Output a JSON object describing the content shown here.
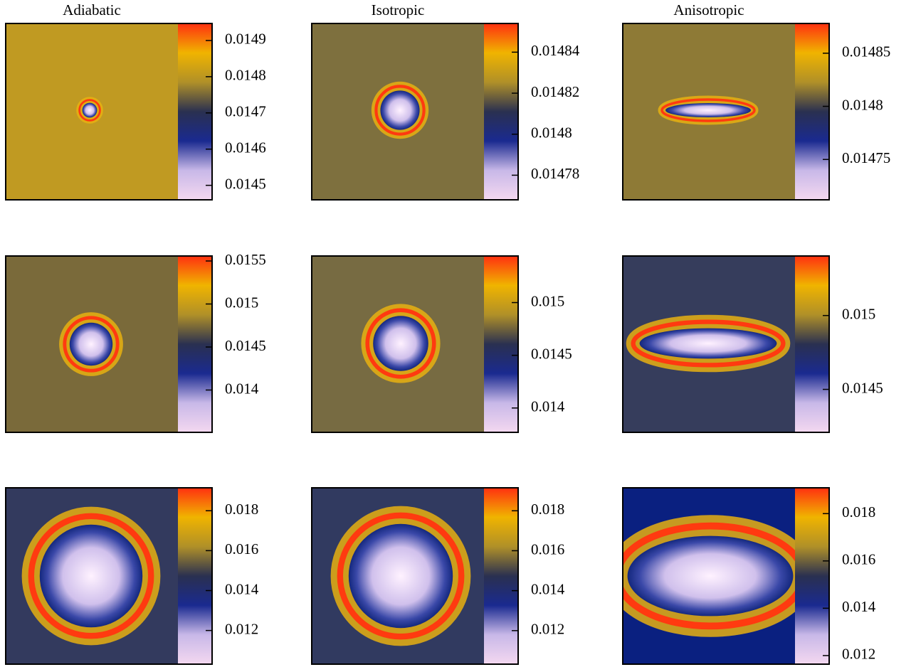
{
  "chart_data": [
    {
      "type": "heatmap",
      "title": "Adiabatic",
      "ylim": [
        0.01446,
        0.014947
      ],
      "yticks": [
        0.0145,
        0.0146,
        0.0147,
        0.0148,
        0.0149
      ],
      "background": "#c09a22",
      "colormap": [
        "#f4d8f0",
        "#c8b8e8",
        "#1a2a90",
        "#2a3050",
        "#b09028",
        "#f0b400",
        "#ff3010"
      ]
    },
    {
      "type": "heatmap",
      "title": "Isotropic",
      "ylim": [
        0.014768,
        0.014854
      ],
      "yticks": [
        0.01478,
        0.0148,
        0.01482,
        0.01484
      ],
      "background": "#7e703e",
      "colormap": [
        "#f4d8f0",
        "#c8b8e8",
        "#1a2a90",
        "#2a3050",
        "#b09028",
        "#f0b400",
        "#ff3010"
      ]
    },
    {
      "type": "heatmap",
      "title": "Anisotropic",
      "ylim": [
        0.014712,
        0.014878
      ],
      "yticks": [
        0.01475,
        0.0148,
        0.01485
      ],
      "background": "#8e7a36",
      "colormap": [
        "#f4d8f0",
        "#c8b8e8",
        "#1a2a90",
        "#2a3050",
        "#b09028",
        "#f0b400",
        "#ff3010"
      ]
    },
    {
      "type": "heatmap",
      "ylim": [
        0.013508,
        0.015558
      ],
      "yticks": [
        0.014,
        0.0145,
        0.015,
        0.0155
      ],
      "background": "#7a6a3a",
      "colormap": [
        "#f4d8f0",
        "#c8b8e8",
        "#1a2a90",
        "#2a3050",
        "#b09028",
        "#f0b400",
        "#ff3010"
      ]
    },
    {
      "type": "heatmap",
      "ylim": [
        0.013769,
        0.015442
      ],
      "yticks": [
        0.014,
        0.0145,
        0.015
      ],
      "background": "#776b42",
      "colormap": [
        "#f4d8f0",
        "#c8b8e8",
        "#1a2a90",
        "#2a3050",
        "#b09028",
        "#f0b400",
        "#ff3010"
      ]
    },
    {
      "type": "heatmap",
      "ylim": [
        0.014209,
        0.015403
      ],
      "yticks": [
        0.0145,
        0.015
      ],
      "background": "#363d5c",
      "colormap": [
        "#f4d8f0",
        "#c8b8e8",
        "#1a2a90",
        "#2a3050",
        "#b09028",
        "#f0b400",
        "#ff3010"
      ]
    },
    {
      "type": "heatmap",
      "ylim": [
        0.010312,
        0.019149
      ],
      "yticks": [
        0.012,
        0.014,
        0.016,
        0.018
      ],
      "background": "#333a5e",
      "colormap": [
        "#f4d8f0",
        "#c8b8e8",
        "#1a2a90",
        "#2a3050",
        "#b09028",
        "#f0b400",
        "#ff3010"
      ]
    },
    {
      "type": "heatmap",
      "ylim": [
        0.01032,
        0.01915
      ],
      "yticks": [
        0.012,
        0.014,
        0.016,
        0.018
      ],
      "background": "#313a60",
      "colormap": [
        "#f4d8f0",
        "#c8b8e8",
        "#1a2a90",
        "#2a3050",
        "#b09028",
        "#f0b400",
        "#ff3010"
      ]
    },
    {
      "type": "heatmap",
      "ylim": [
        0.011636,
        0.019091
      ],
      "yticks": [
        0.012,
        0.014,
        0.016,
        0.018
      ],
      "background": "#0a2080",
      "colormap": [
        "#f4d8f0",
        "#c8b8e8",
        "#1a2a90",
        "#2a3050",
        "#b09028",
        "#f0b400",
        "#ff3010"
      ]
    }
  ]
}
